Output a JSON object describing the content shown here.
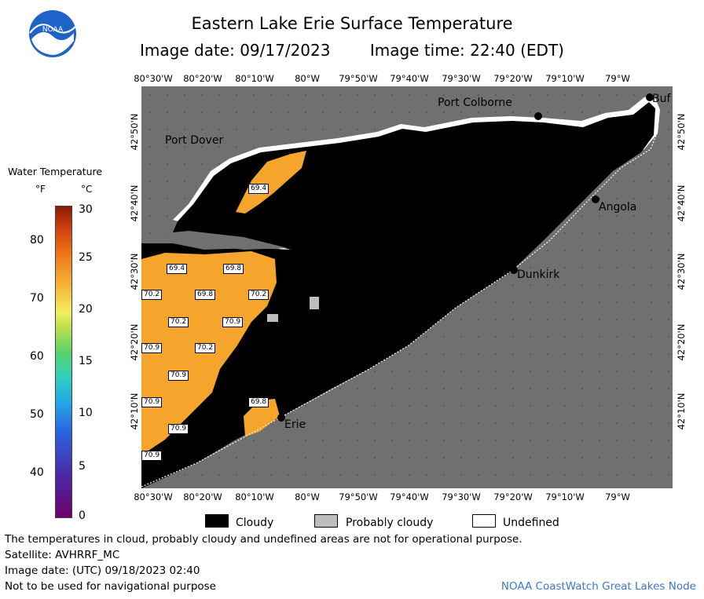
{
  "header": {
    "title": "Eastern Lake Erie Surface Temperature",
    "image_date": "Image date: 09/17/2023",
    "image_time": "Image time: 22:40 (EDT)"
  },
  "logo": {
    "text": "NOAA"
  },
  "legend": {
    "title": "Water Temperature",
    "unit_f": "°F",
    "unit_c": "°C",
    "f_ticks": [
      "80",
      "70",
      "60",
      "50",
      "40"
    ],
    "c_ticks": [
      "30",
      "25",
      "20",
      "15",
      "10",
      "5",
      "0"
    ]
  },
  "axes": {
    "lon_ticks": [
      "80°30'W",
      "80°20'W",
      "80°10'W",
      "80°W",
      "79°50'W",
      "79°40'W",
      "79°30'W",
      "79°20'W",
      "79°10'W",
      "79°W"
    ],
    "lat_ticks": [
      "42°50'N",
      "42°40'N",
      "42°30'N",
      "42°20'N",
      "42°10'N"
    ]
  },
  "cities": [
    "Port Colborne",
    "Buf",
    "Port Dover",
    "Angola",
    "Dunkirk",
    "Erie"
  ],
  "temperature_labels": [
    "69.4",
    "69.4",
    "69.8",
    "70.2",
    "69.8",
    "70.2",
    "70.2",
    "70.9",
    "70.9",
    "70.2",
    "70.9",
    "70.9",
    "70.9",
    "69.8",
    "70.9"
  ],
  "map_legend": {
    "cloudy": "Cloudy",
    "probably_cloudy": "Probably cloudy",
    "undefined": "Undefined",
    "colors": {
      "cloudy": "#000000",
      "probably_cloudy": "#bdbdbd",
      "undefined": "#ffffff",
      "land": "#707070",
      "warm_water": "#f5a42c"
    }
  },
  "footer": {
    "disclaimer": "The temperatures in cloud, probably cloudy and undefined areas are not for operational purpose.",
    "satellite": "Satellite: AVHRRF_MC",
    "utc_date": "Image date: (UTC) 09/18/2023  02:40",
    "nav_warning": "Not to be used for navigational purpose",
    "credit": "NOAA CoastWatch Great Lakes Node"
  }
}
